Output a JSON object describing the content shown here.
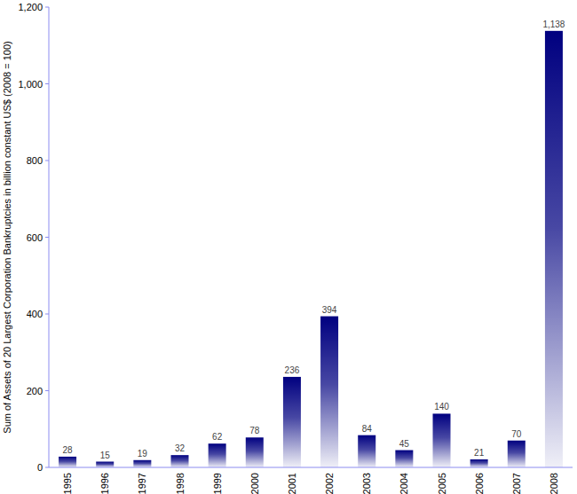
{
  "chart_data": {
    "type": "bar",
    "y_label": "Sum of Assets of 20 Largest Corporation Bankruptcies in billion constant US$ (2008 = 100)",
    "categories": [
      "1995",
      "1996",
      "1997",
      "1998",
      "1999",
      "2000",
      "2001",
      "2002",
      "2003",
      "2004",
      "2005",
      "2006",
      "2007",
      "2008"
    ],
    "values": [
      28,
      15,
      19,
      32,
      62,
      78,
      236,
      394,
      84,
      45,
      140,
      21,
      70,
      1138
    ],
    "value_labels": [
      "28",
      "15",
      "19",
      "32",
      "62",
      "78",
      "236",
      "394",
      "84",
      "45",
      "140",
      "21",
      "70",
      "1,138"
    ],
    "color": "#000080",
    "ylim": [
      0,
      1200
    ],
    "yticks": [
      0,
      200,
      400,
      600,
      800,
      {
        "value": 1000,
        "label": "1,000"
      },
      {
        "value": 1200,
        "label": "1,200"
      }
    ],
    "grid": false,
    "data_labels": true
  }
}
